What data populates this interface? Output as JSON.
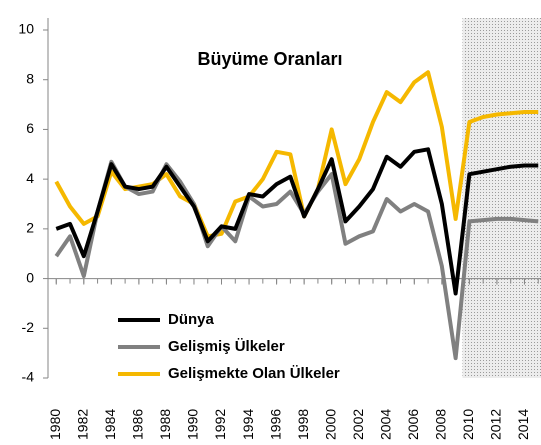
{
  "chart_data": {
    "type": "line",
    "title": "Büyüme Oranları",
    "x": [
      1980,
      1981,
      1982,
      1983,
      1984,
      1985,
      1986,
      1987,
      1988,
      1989,
      1990,
      1991,
      1992,
      1993,
      1994,
      1995,
      1996,
      1997,
      1998,
      1999,
      2000,
      2001,
      2002,
      2003,
      2004,
      2005,
      2006,
      2007,
      2008,
      2009,
      2010,
      2011,
      2012,
      2013,
      2014,
      2015
    ],
    "series": [
      {
        "name": "Dünya",
        "color": "#000000",
        "values": [
          2.0,
          2.2,
          0.9,
          2.7,
          4.6,
          3.7,
          3.6,
          3.7,
          4.5,
          3.7,
          2.9,
          1.5,
          2.1,
          2.0,
          3.4,
          3.3,
          3.8,
          4.1,
          2.5,
          3.6,
          4.8,
          2.3,
          2.9,
          3.6,
          4.9,
          4.5,
          5.1,
          5.2,
          3.0,
          -0.6,
          4.2,
          4.3,
          4.4,
          4.5,
          4.55,
          4.55
        ]
      },
      {
        "name": "Gelişmiş Ülkeler",
        "color": "#808080",
        "values": [
          0.9,
          1.7,
          0.1,
          2.7,
          4.7,
          3.7,
          3.4,
          3.5,
          4.6,
          3.9,
          3.0,
          1.3,
          2.1,
          1.5,
          3.3,
          2.9,
          3.0,
          3.5,
          2.6,
          3.5,
          4.2,
          1.4,
          1.7,
          1.9,
          3.2,
          2.7,
          3.0,
          2.7,
          0.5,
          -3.2,
          2.3,
          2.35,
          2.4,
          2.4,
          2.35,
          2.3
        ]
      },
      {
        "name": "Gelişmekte Olan Ülkeler",
        "color": "#f5b800",
        "values": [
          3.9,
          2.9,
          2.2,
          2.5,
          4.3,
          3.6,
          3.7,
          3.8,
          4.2,
          3.3,
          3.0,
          1.7,
          1.8,
          3.1,
          3.3,
          4.0,
          5.1,
          5.0,
          2.5,
          3.6,
          6.0,
          3.8,
          4.8,
          6.3,
          7.5,
          7.1,
          7.9,
          8.3,
          6.1,
          2.4,
          6.3,
          6.5,
          6.6,
          6.65,
          6.7,
          6.7
        ]
      }
    ],
    "xlim": [
      1979.4,
      2015.2
    ],
    "xticks": [
      1980,
      1982,
      1984,
      1986,
      1988,
      1990,
      1992,
      1994,
      1996,
      1998,
      2000,
      2002,
      2004,
      2006,
      2008,
      2010,
      2012,
      2014
    ],
    "ylim": [
      -4,
      10
    ],
    "yticks": [
      -4,
      -2,
      0,
      2,
      4,
      6,
      8,
      10
    ],
    "shaded_from": 2009.5,
    "legend": "lower left"
  }
}
